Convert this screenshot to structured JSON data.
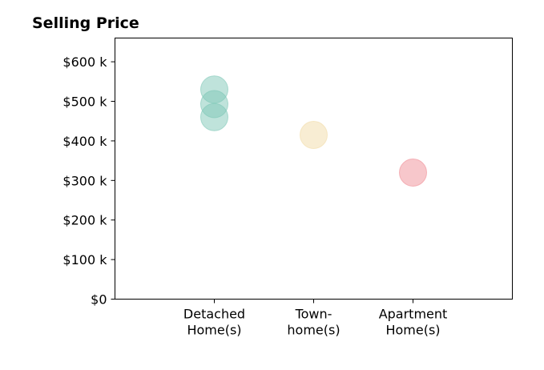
{
  "chart_data": {
    "type": "scatter",
    "title": "Selling Price",
    "xlabel": "",
    "ylabel": "",
    "categories": [
      [
        "Detached",
        "Home(s)"
      ],
      [
        "Town-",
        "home(s)"
      ],
      [
        "Apartment",
        "Home(s)"
      ]
    ],
    "y_ticks": [
      0,
      100000,
      200000,
      300000,
      400000,
      500000,
      600000
    ],
    "y_tick_labels": [
      "$0",
      "$100 k",
      "$200 k",
      "$300 k",
      "$400 k",
      "$500 k",
      "$600 k"
    ],
    "ylim": [
      0,
      660000
    ],
    "xlim": [
      -1,
      3
    ],
    "grid": false,
    "points": [
      {
        "category": 0,
        "y": 530000,
        "color": "#7fc8b8"
      },
      {
        "category": 0,
        "y": 493000,
        "color": "#7fc8b8"
      },
      {
        "category": 0,
        "y": 460000,
        "color": "#7fc8b8"
      },
      {
        "category": 1,
        "y": 415000,
        "color": "#f2dca8"
      },
      {
        "category": 2,
        "y": 320000,
        "color": "#f08f98"
      }
    ],
    "marker_opacity": 0.5
  }
}
